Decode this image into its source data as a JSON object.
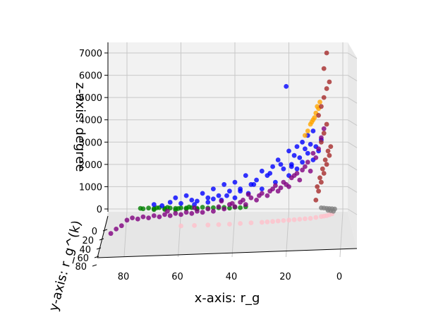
{
  "chart_data": {
    "type": "scatter",
    "view": "3d",
    "xlabel": "x-axis:  r_g",
    "ylabel": "y-axis:  r_g^(k)",
    "zlabel": "z-axis:  degree",
    "x_ticks": [
      80,
      60,
      40,
      20,
      0
    ],
    "y_ticks": [
      0,
      20,
      40,
      60,
      80
    ],
    "z_ticks": [
      0,
      1000,
      2000,
      3000,
      4000,
      5000,
      6000,
      7000
    ],
    "xlim": [
      0,
      87
    ],
    "zlim": [
      -500,
      7200
    ],
    "grid": true,
    "series": [
      {
        "color": "#ffc0cb",
        "x": [
          4,
          5,
          6,
          7,
          8,
          10,
          12,
          14,
          16,
          18,
          20,
          22,
          24,
          26,
          28,
          30,
          34,
          38,
          42,
          46,
          50,
          55,
          60
        ],
        "z": [
          -220,
          -260,
          -300,
          -320,
          -340,
          -380,
          -420,
          -440,
          -460,
          -480,
          -500,
          -520,
          -540,
          -560,
          -580,
          -600,
          -620,
          -650,
          -680,
          -700,
          -720,
          -740,
          -760
        ]
      },
      {
        "color": "#808080",
        "x": [
          3,
          4,
          5,
          6,
          7,
          8,
          3.5,
          4.5,
          5.5
        ],
        "z": [
          0,
          10,
          20,
          30,
          40,
          50,
          -100,
          -80,
          -60
        ]
      },
      {
        "color": "#008000",
        "x": [
          75,
          72,
          70,
          68,
          66,
          64,
          62,
          60,
          58,
          56,
          54,
          52,
          50,
          48,
          46,
          44,
          42,
          40,
          38,
          36,
          70,
          66,
          62,
          58,
          54,
          74,
          69,
          65,
          61,
          57
        ],
        "z": [
          30,
          40,
          20,
          60,
          30,
          40,
          30,
          50,
          40,
          60,
          30,
          80,
          40,
          60,
          50,
          70,
          40,
          80,
          60,
          100,
          -30,
          -20,
          -40,
          10,
          0,
          10,
          50,
          70,
          20,
          90
        ]
      },
      {
        "color": "#0000ff",
        "x": [
          70,
          67,
          64,
          62,
          60,
          58,
          56,
          54,
          52,
          50,
          48,
          46,
          44,
          42,
          40,
          38,
          36,
          34,
          32,
          30,
          28,
          26,
          24,
          22,
          20,
          19,
          18,
          17,
          16,
          15,
          14,
          13,
          12,
          11,
          20,
          25,
          30,
          35,
          40,
          45,
          50,
          55,
          23,
          27,
          33,
          38,
          43,
          48,
          17,
          15,
          13,
          11,
          10,
          9,
          8,
          21,
          19
        ],
        "z": [
          200,
          150,
          300,
          500,
          250,
          600,
          400,
          350,
          700,
          500,
          900,
          600,
          1100,
          800,
          1200,
          900,
          1500,
          1100,
          1300,
          1700,
          1500,
          1900,
          2200,
          1800,
          2600,
          2000,
          2400,
          2800,
          2300,
          3000,
          2700,
          3300,
          2900,
          3500,
          1500,
          1200,
          900,
          700,
          500,
          400,
          300,
          200,
          2000,
          1600,
          1100,
          800,
          600,
          450,
          1800,
          2100,
          2500,
          2200,
          2800,
          2600,
          3100,
          5500,
          1900
        ]
      },
      {
        "color": "#800080",
        "x": [
          80,
          78,
          76,
          74,
          72,
          70,
          68,
          66,
          64,
          62,
          60,
          58,
          56,
          54,
          52,
          50,
          48,
          46,
          44,
          42,
          40,
          38,
          36,
          34,
          32,
          30,
          28,
          26,
          24,
          22,
          20,
          18,
          16,
          14,
          12,
          10,
          9,
          8,
          7,
          84,
          82,
          86,
          65,
          55,
          45,
          35,
          25,
          15,
          19,
          17,
          13,
          11,
          21,
          23,
          27,
          31,
          37,
          41
        ],
        "z": [
          -500,
          -400,
          -450,
          -350,
          -400,
          -300,
          -350,
          -250,
          -300,
          -200,
          -250,
          -150,
          -200,
          -100,
          -150,
          0,
          -100,
          100,
          0,
          200,
          100,
          300,
          200,
          500,
          400,
          700,
          600,
          900,
          800,
          1200,
          1000,
          1500,
          1300,
          1900,
          1700,
          2300,
          2700,
          3200,
          3600,
          -900,
          -750,
          -1100,
          -100,
          50,
          350,
          650,
          1050,
          1750,
          1400,
          1600,
          2100,
          2500,
          1100,
          950,
          800,
          600,
          400,
          250
        ]
      },
      {
        "color": "#ffa500",
        "x": [
          12,
          11,
          10,
          9,
          13,
          14,
          11.5,
          10.5,
          9.5,
          8.5
        ],
        "z": [
          3800,
          4000,
          4300,
          4500,
          3500,
          3300,
          3900,
          4100,
          4600,
          4800
        ]
      },
      {
        "color": "#a52a2a",
        "x": [
          10,
          9,
          8,
          7,
          6,
          5,
          4.5,
          9.5,
          8.5,
          7.5,
          6.5,
          5.5,
          8,
          7,
          6,
          9,
          8,
          7,
          6,
          5,
          7,
          6
        ],
        "z": [
          400,
          800,
          1200,
          1600,
          2000,
          2400,
          2800,
          1000,
          1400,
          1800,
          2200,
          2600,
          3000,
          3400,
          3800,
          4200,
          4600,
          5000,
          5400,
          5700,
          6300,
          7000
        ]
      }
    ]
  }
}
